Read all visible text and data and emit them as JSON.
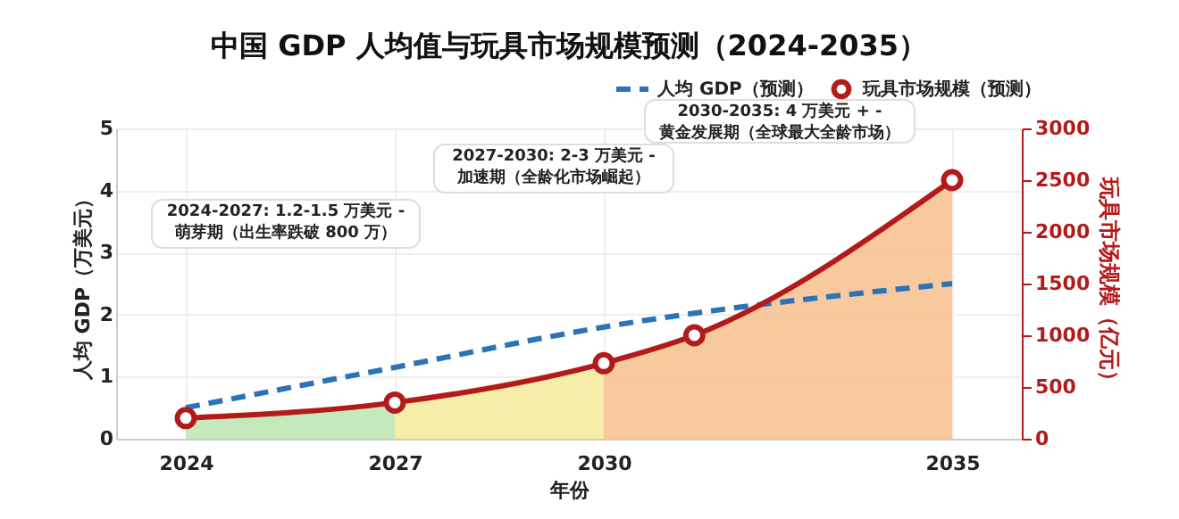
{
  "chart_data": {
    "type": "line",
    "title": "中国 GDP 人均值与玩具市场规模预测（2024-2035）",
    "xlabel": "年份",
    "ylabel": "人均 GDP（万美元）",
    "y2label": "玩具市场规模（亿元）",
    "xlim": [
      2023,
      2036
    ],
    "xticks": [
      2024,
      2027,
      2030,
      2035
    ],
    "ylim": [
      0,
      5
    ],
    "yticks": [
      0,
      1,
      2,
      3,
      4,
      5
    ],
    "y2lim": [
      0,
      3000
    ],
    "y2ticks": [
      0,
      500,
      1000,
      1500,
      2000,
      2500,
      3000
    ],
    "grid": true,
    "legend": "top right",
    "series": [
      {
        "type": "area",
        "axis": "y2",
        "color": "#bfe5b5",
        "x": [
          2024,
          2027
        ],
        "values": [
          200,
          350
        ]
      },
      {
        "type": "area",
        "axis": "y2",
        "color": "#f5ec9f",
        "x": [
          2027,
          2030
        ],
        "values": [
          350,
          730
        ]
      },
      {
        "type": "area",
        "axis": "y2",
        "color": "#f7c392",
        "x": [
          2030,
          2031.3,
          2035
        ],
        "values": [
          730,
          1000,
          2500
        ]
      },
      {
        "name": "人均 GDP（预测）",
        "line_style": "dashed",
        "marker": "none",
        "color": "#2b73b6",
        "x": [
          2024,
          2027,
          2030,
          2035
        ],
        "values": [
          0.5,
          1.15,
          1.8,
          2.5
        ]
      },
      {
        "name": "玩具市场规模（预测）",
        "axis": "y2",
        "marker": "circle",
        "line_style": "solid",
        "color": "#b31b1b",
        "x": [
          2024,
          2027,
          2030,
          2031.3,
          2035
        ],
        "values": [
          200,
          350,
          730,
          1000,
          2500
        ]
      }
    ],
    "annotations": [
      "2024-2027: 1.2-1.5 万美元 -\n萌芽期（出生率跌破 800 万）",
      "2027-2030: 2-3 万美元 -\n加速期（全龄化市场崛起）",
      "2030-2035: 4 万美元 + -\n黄金发展期（全球最大全龄市场）"
    ]
  }
}
